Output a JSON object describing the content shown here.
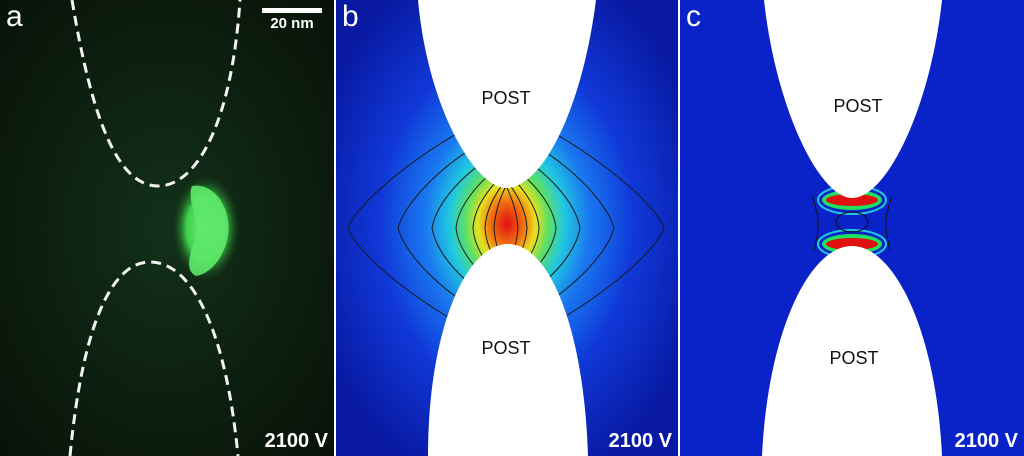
{
  "panels": [
    {
      "letter": "a",
      "voltage": "2100 V",
      "scale_bar": "20 nm",
      "letter_color": "#ffffff"
    },
    {
      "letter": "b",
      "voltage": "2100 V",
      "post_labels": [
        "POST",
        "POST"
      ],
      "letter_color": "#ffffff"
    },
    {
      "letter": "c",
      "voltage": "2100 V",
      "post_labels": [
        "POST",
        "POST"
      ],
      "letter_color": "#ffffff"
    }
  ],
  "colors": {
    "fluorescence_green": "#4de05a",
    "field_low": "#0a23c8",
    "field_high": "#e01010"
  }
}
